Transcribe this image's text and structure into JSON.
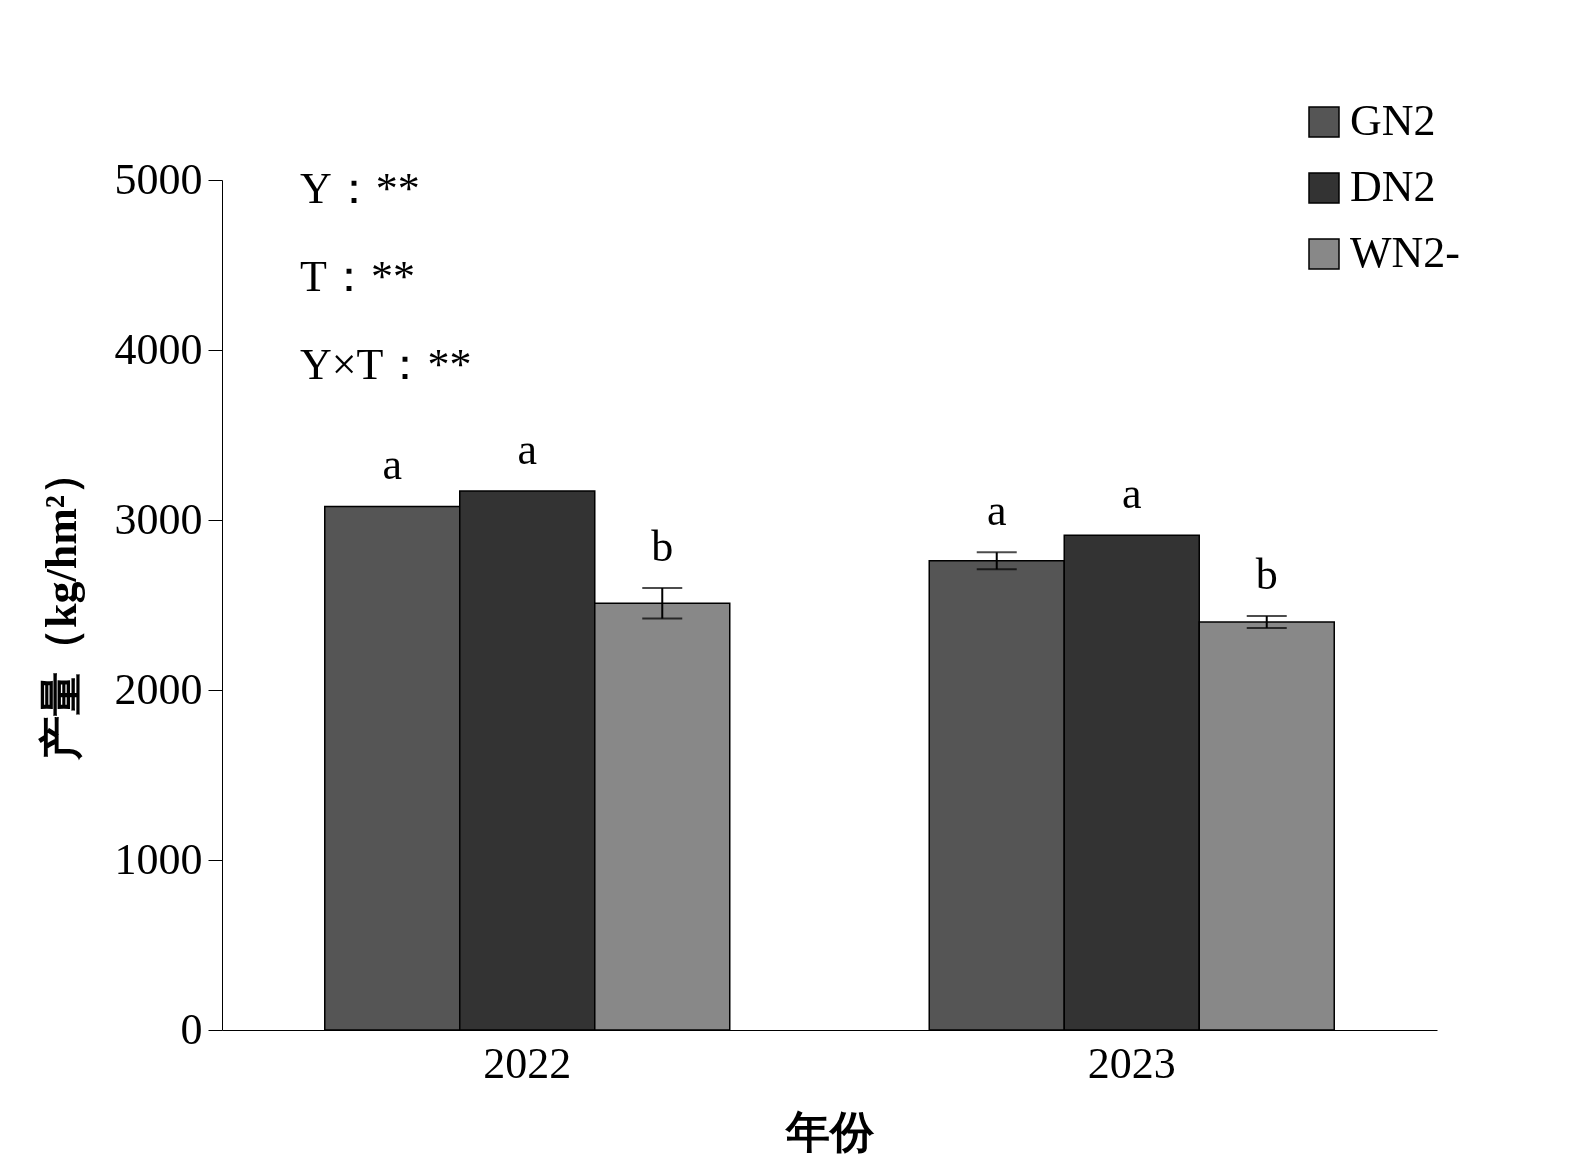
{
  "chart_data": {
    "type": "bar",
    "xlabel": "年份",
    "ylabel": "产量（kg/hm²）",
    "categories": [
      "2022",
      "2023"
    ],
    "series": [
      {
        "name": "GN2",
        "color": "#555555",
        "values": [
          3080,
          2760
        ],
        "errors": [
          null,
          50
        ],
        "value_labels": [
          "a",
          "a"
        ]
      },
      {
        "name": "DN2",
        "color": "#333333",
        "values": [
          3170,
          2910
        ],
        "errors": [
          null,
          null
        ],
        "value_labels": [
          "a",
          "a"
        ]
      },
      {
        "name": "WN2-",
        "color": "#888888",
        "values": [
          2510,
          2400
        ],
        "errors": [
          90,
          35
        ],
        "value_labels": [
          "b",
          "b"
        ]
      }
    ],
    "ylim": [
      0,
      5000
    ],
    "yticks": [
      0,
      1000,
      2000,
      3000,
      4000,
      5000
    ],
    "grid": false,
    "legend": "top right",
    "annotations": [
      "Y：**",
      "T：**",
      "Y×T：**"
    ]
  }
}
